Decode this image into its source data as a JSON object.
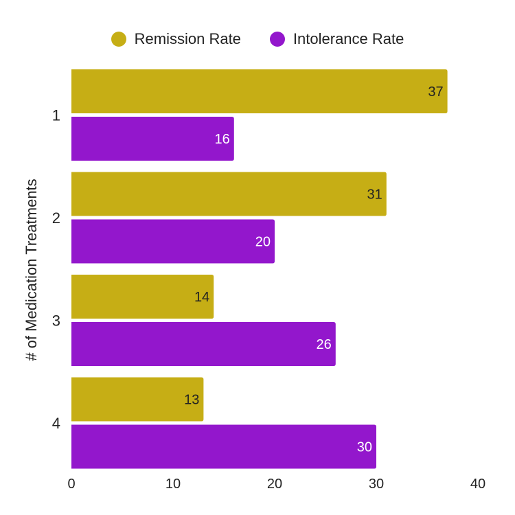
{
  "chart_data": {
    "type": "bar",
    "orientation": "horizontal",
    "categories": [
      "1",
      "2",
      "3",
      "4"
    ],
    "series": [
      {
        "name": "Remission Rate",
        "color": "#c6ae15",
        "label_color": "#222222",
        "values": [
          37,
          31,
          14,
          13
        ]
      },
      {
        "name": "Intolerance Rate",
        "color": "#9317cc",
        "label_color": "#ffffff",
        "values": [
          16,
          20,
          26,
          30
        ]
      }
    ],
    "xticks": [
      0,
      10,
      20,
      30,
      40
    ],
    "xlim": [
      0,
      40
    ],
    "xlabel": "",
    "ylabel": "# of Medication Treatments",
    "legend_position": "top-center",
    "grid": false
  }
}
